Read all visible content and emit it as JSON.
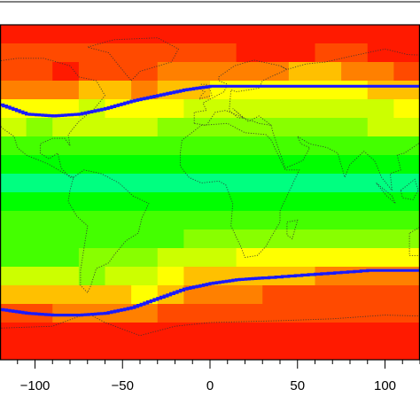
{
  "chart_data": {
    "type": "heatmap",
    "title": "",
    "xlabel": "",
    "ylabel": "",
    "xlim": [
      -120,
      120
    ],
    "ylim": [
      -90,
      90
    ],
    "xticks": [
      -100,
      -50,
      0,
      50,
      100
    ],
    "xtick_labels": [
      "−100",
      "−50",
      "0",
      "50",
      "100"
    ],
    "grid": false,
    "legend": "none",
    "colormap": [
      "#ff1a00",
      "#ff4a00",
      "#ff8000",
      "#ffc000",
      "#ffff00",
      "#ccff00",
      "#88ff00",
      "#44ff00",
      "#00ff00",
      "#00ff80"
    ],
    "cell_size_deg": [
      15,
      10
    ],
    "rows": [
      {
        "lat_bottom": 80,
        "levels": [
          0,
          0,
          0,
          0,
          0,
          0,
          0,
          0,
          0,
          0,
          0,
          0,
          0,
          0,
          0,
          0
        ]
      },
      {
        "lat_bottom": 70,
        "levels": [
          1,
          1,
          1,
          1,
          1,
          1,
          1,
          1,
          1,
          0,
          0,
          0,
          1,
          1,
          0,
          0
        ]
      },
      {
        "lat_bottom": 60,
        "levels": [
          1,
          1,
          0,
          1,
          1,
          1,
          2,
          2,
          2,
          2,
          2,
          3,
          3,
          2,
          2,
          1
        ]
      },
      {
        "lat_bottom": 50,
        "levels": [
          2,
          2,
          2,
          3,
          3,
          2,
          3,
          3,
          4,
          4,
          4,
          4,
          4,
          4,
          3,
          3
        ]
      },
      {
        "lat_bottom": 40,
        "levels": [
          4,
          4,
          4,
          5,
          4,
          4,
          4,
          5,
          5,
          5,
          5,
          5,
          5,
          5,
          5,
          4
        ]
      },
      {
        "lat_bottom": 30,
        "levels": [
          5,
          6,
          5,
          5,
          5,
          5,
          6,
          6,
          6,
          6,
          6,
          6,
          6,
          6,
          5,
          5
        ]
      },
      {
        "lat_bottom": 20,
        "levels": [
          7,
          7,
          7,
          7,
          7,
          7,
          7,
          7,
          7,
          7,
          7,
          7,
          7,
          7,
          7,
          7
        ]
      },
      {
        "lat_bottom": 10,
        "levels": [
          8,
          8,
          8,
          8,
          8,
          8,
          8,
          8,
          8,
          8,
          8,
          8,
          8,
          8,
          8,
          8
        ]
      },
      {
        "lat_bottom": 0,
        "levels": [
          9,
          9,
          9,
          9,
          9,
          9,
          9,
          9,
          9,
          9,
          9,
          9,
          9,
          9,
          9,
          9
        ]
      },
      {
        "lat_bottom": -10,
        "levels": [
          8,
          8,
          8,
          8,
          8,
          8,
          8,
          8,
          8,
          8,
          8,
          8,
          8,
          8,
          8,
          8
        ]
      },
      {
        "lat_bottom": -20,
        "levels": [
          7,
          7,
          7,
          7,
          7,
          7,
          7,
          7,
          7,
          7,
          7,
          7,
          7,
          7,
          7,
          7
        ]
      },
      {
        "lat_bottom": -30,
        "levels": [
          7,
          7,
          7,
          7,
          7,
          7,
          7,
          6,
          6,
          6,
          6,
          6,
          6,
          6,
          6,
          6
        ]
      },
      {
        "lat_bottom": -40,
        "levels": [
          7,
          7,
          7,
          6,
          6,
          6,
          5,
          5,
          5,
          4,
          4,
          4,
          4,
          4,
          4,
          4
        ]
      },
      {
        "lat_bottom": -50,
        "levels": [
          5,
          5,
          5,
          6,
          5,
          5,
          4,
          3,
          3,
          3,
          3,
          3,
          2,
          2,
          2,
          2
        ]
      },
      {
        "lat_bottom": -60,
        "levels": [
          3,
          3,
          3,
          3,
          3,
          4,
          3,
          2,
          2,
          2,
          1,
          1,
          1,
          1,
          1,
          1
        ]
      },
      {
        "lat_bottom": -70,
        "levels": [
          1,
          1,
          2,
          2,
          2,
          2,
          1,
          1,
          1,
          1,
          1,
          1,
          1,
          1,
          1,
          1
        ]
      },
      {
        "lat_bottom": -80,
        "levels": [
          0,
          0,
          0,
          0,
          0,
          0,
          0,
          0,
          0,
          0,
          0,
          0,
          0,
          0,
          0,
          0
        ]
      },
      {
        "lat_bottom": -90,
        "levels": [
          0,
          0,
          0,
          0,
          0,
          0,
          0,
          0,
          0,
          0,
          0,
          0,
          0,
          0,
          0,
          0
        ]
      }
    ],
    "boundary_lines": [
      {
        "color": "#1a1aff",
        "points": [
          [
            -120,
            47
          ],
          [
            -105,
            42
          ],
          [
            -90,
            41
          ],
          [
            -75,
            42
          ],
          [
            -60,
            45
          ],
          [
            -45,
            49
          ],
          [
            -30,
            52
          ],
          [
            -15,
            55
          ],
          [
            0,
            57
          ],
          [
            15,
            57
          ],
          [
            30,
            57
          ],
          [
            60,
            57
          ],
          [
            90,
            57
          ],
          [
            120,
            57
          ]
        ]
      },
      {
        "color": "#1a1aff",
        "points": [
          [
            -120,
            -63
          ],
          [
            -105,
            -65
          ],
          [
            -90,
            -66
          ],
          [
            -75,
            -66
          ],
          [
            -60,
            -65
          ],
          [
            -45,
            -62
          ],
          [
            -30,
            -57
          ],
          [
            -15,
            -52
          ],
          [
            0,
            -49
          ],
          [
            15,
            -47
          ],
          [
            30,
            -46
          ],
          [
            60,
            -44
          ],
          [
            90,
            -42
          ],
          [
            120,
            -42
          ]
        ]
      }
    ]
  }
}
